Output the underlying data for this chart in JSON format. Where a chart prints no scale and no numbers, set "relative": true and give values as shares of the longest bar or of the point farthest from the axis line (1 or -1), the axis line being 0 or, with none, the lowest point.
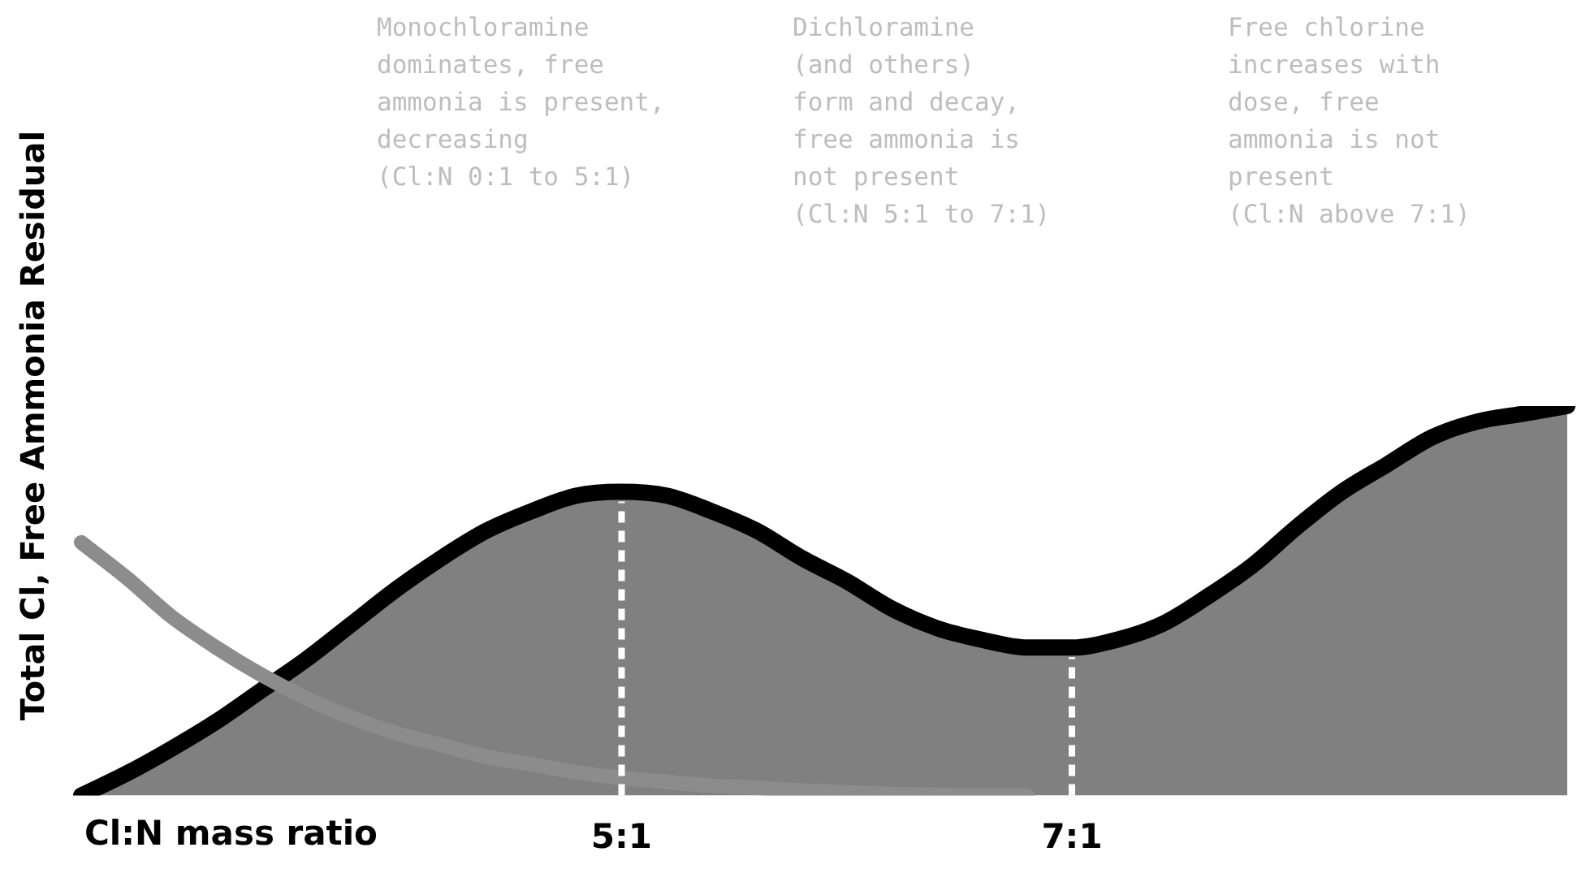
{
  "chart_data": {
    "type": "area",
    "relative": true,
    "ylabel": "Total Cl, Free Ammonia Residual",
    "xlabel": "Cl:N mass ratio",
    "categories": [
      null,
      null,
      null,
      null,
      null,
      null,
      null,
      null,
      null,
      null,
      null,
      null,
      "5:1",
      null,
      null,
      null,
      null,
      null,
      null,
      null,
      null,
      null,
      "7:1",
      null,
      null,
      null,
      null,
      null,
      null,
      null,
      null,
      null,
      null,
      null
    ],
    "series": [
      {
        "color": "#808080",
        "values": [
          0,
          0.056,
          0.12,
          0.19,
          0.27,
          0.35,
          0.44,
          0.53,
          0.61,
          0.68,
          0.73,
          0.77,
          0.78,
          0.77,
          0.73,
          0.68,
          0.61,
          0.55,
          0.48,
          0.43,
          0.4,
          0.38,
          0.38,
          0.4,
          0.44,
          0.51,
          0.59,
          0.69,
          0.78,
          0.85,
          0.92,
          0.96,
          0.98,
          1
        ]
      },
      {
        "type": "line",
        "color": "#8c8c8c",
        "values": [
          0.65,
          0.56,
          0.46,
          0.38,
          0.31,
          0.25,
          0.2,
          0.16,
          0.13,
          0.1,
          0.08,
          0.06,
          0.045,
          0.035,
          0.025,
          0.02,
          0.013,
          0.008,
          0.004,
          0.002,
          0,
          0,
          null,
          null,
          null,
          null,
          null,
          null,
          null,
          null,
          null,
          null,
          null,
          null
        ]
      }
    ],
    "ref_lines": [
      {
        "axis": "x",
        "value": "5:1",
        "color": "#ffffff",
        "line_style": "dashed"
      },
      {
        "axis": "x",
        "value": "7:1",
        "color": "#ffffff",
        "line_style": "dashed"
      }
    ],
    "annotations": [
      "Monochloramine\ndominates, free\nammonia is present,\ndecreasing\n(Cl:N 0:1 to 5:1)",
      "Dichloramine\n(and others)\nform and decay,\nfree ammonia is\nnot present\n(Cl:N 5:1 to 7:1)",
      "Free chlorine\nincreases with\ndose, free\nammonia is not\npresent\n(Cl:N above 7:1)"
    ],
    "grid": false,
    "legend": false
  }
}
